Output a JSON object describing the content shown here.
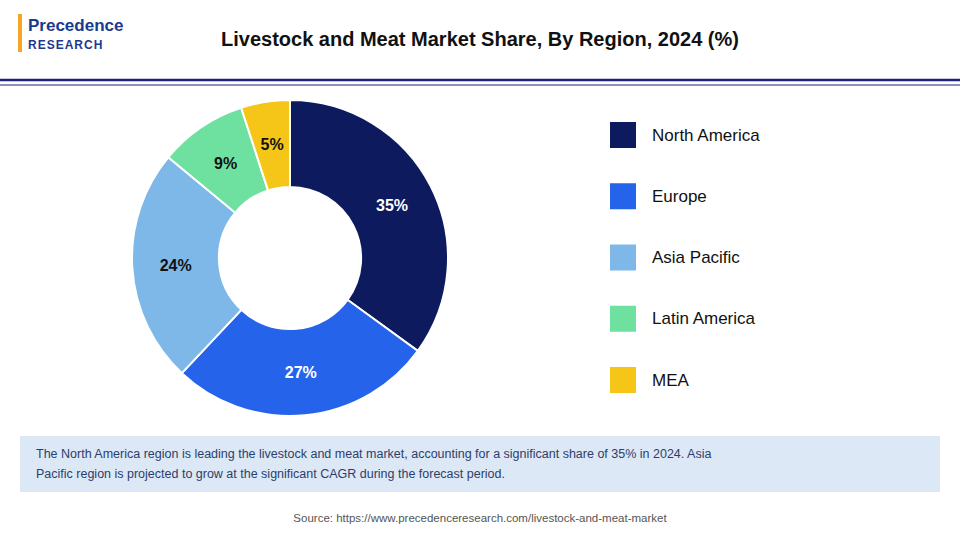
{
  "chart_data": {
    "type": "pie",
    "title": "Livestock and Meat Market Share, By Region, 2024 (%)",
    "logo": [
      "Precedence",
      "RESEARCH"
    ],
    "categories": [
      "North America",
      "Europe",
      "Asia Pacific",
      "Latin America",
      "MEA"
    ],
    "values": [
      35,
      27,
      24,
      9,
      5
    ],
    "value_labels": [
      "35%",
      "27%",
      "24%",
      "9%",
      "5%"
    ],
    "colors": [
      "#0d1b5e",
      "#2563eb",
      "#7db8e8",
      "#6ee0a0",
      "#f5c518"
    ],
    "data_labels": true,
    "legend": "right",
    "annotation": "The North America region is leading the livestock and meat market, accounting for a significant share of 35% in 2024. Asia\nPacific region is projected to grow at the significant CAGR during the forecast period.",
    "source": "Source: https://www.precedenceresearch.com/livestock-and-meat-market"
  }
}
